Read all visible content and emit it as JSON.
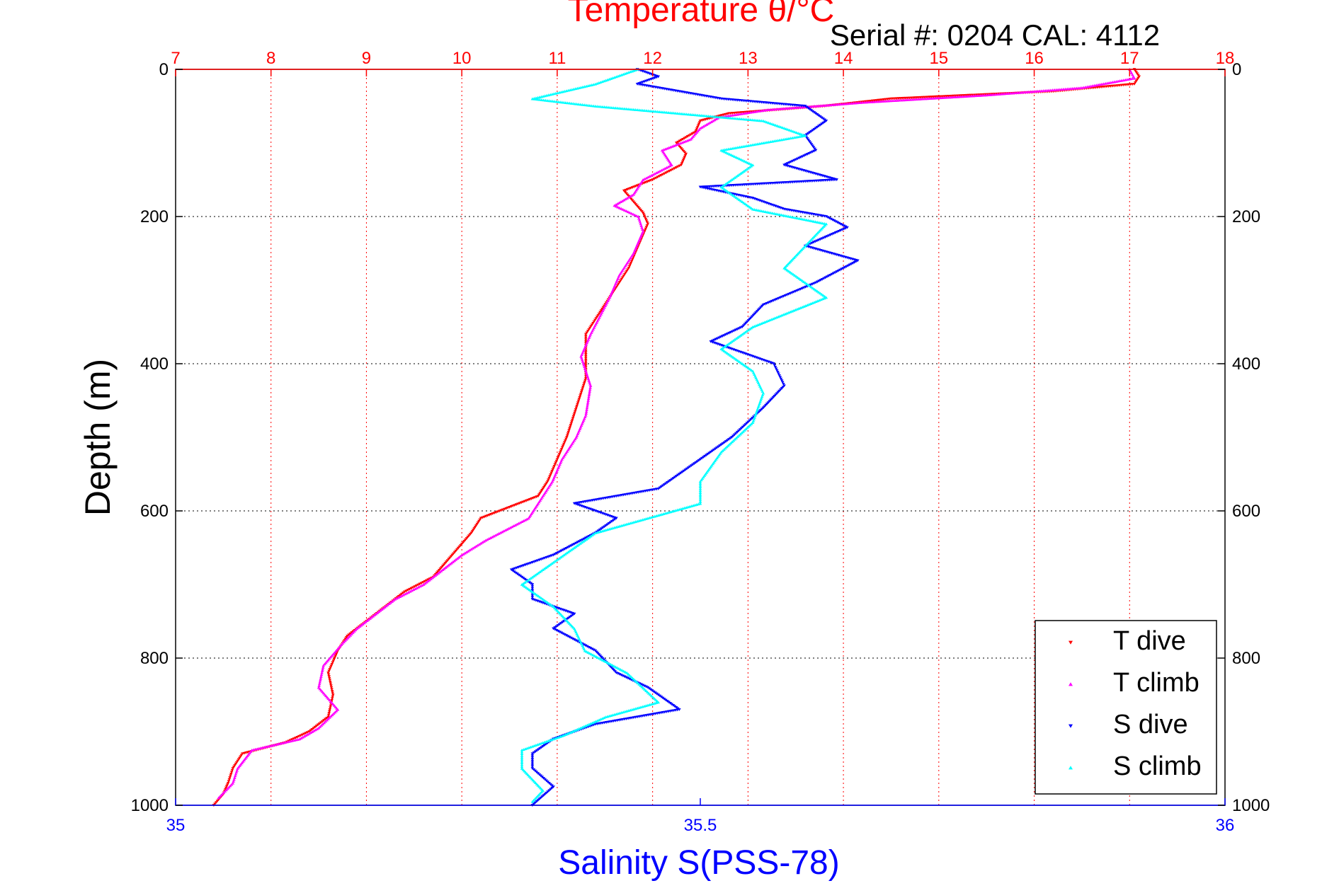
{
  "chart_data": {
    "type": "scatter",
    "title": "Temperature θ/°C",
    "subtitle": "Serial #: 0204  CAL: 4112",
    "ylabel": "Depth (m)",
    "xlabel_bottom": "Salinity S(PSS-78)",
    "y_axis": {
      "label": "Depth (m)",
      "range": [
        0,
        1000
      ],
      "reversed": true,
      "ticks": [
        0,
        200,
        400,
        600,
        800,
        1000
      ]
    },
    "x_axis_top": {
      "label": "Temperature θ/°C",
      "range": [
        7,
        18
      ],
      "ticks": [
        7,
        8,
        9,
        10,
        11,
        12,
        13,
        14,
        15,
        16,
        17,
        18
      ],
      "color": "#ff0000"
    },
    "x_axis_bottom": {
      "label": "Salinity S(PSS-78)",
      "range": [
        35,
        36
      ],
      "ticks": [
        35,
        35.5,
        36
      ],
      "tick_labels": [
        "35",
        "35.5",
        "36"
      ],
      "color": "#0000ff"
    },
    "grid": true,
    "legend": {
      "position": "bottom-right"
    },
    "series": [
      {
        "name": "T dive",
        "axis": "top",
        "color": "#ff0000",
        "marker": "triangle-down",
        "points": [
          [
            17.05,
            0
          ],
          [
            17.1,
            10
          ],
          [
            17.05,
            20
          ],
          [
            16.2,
            30
          ],
          [
            14.5,
            40
          ],
          [
            13.8,
            50
          ],
          [
            12.8,
            60
          ],
          [
            12.5,
            70
          ],
          [
            12.45,
            85
          ],
          [
            12.25,
            100
          ],
          [
            12.35,
            115
          ],
          [
            12.3,
            130
          ],
          [
            12.0,
            150
          ],
          [
            11.7,
            165
          ],
          [
            11.8,
            180
          ],
          [
            11.9,
            195
          ],
          [
            11.95,
            210
          ],
          [
            11.85,
            240
          ],
          [
            11.75,
            270
          ],
          [
            11.6,
            300
          ],
          [
            11.45,
            330
          ],
          [
            11.3,
            360
          ],
          [
            11.3,
            390
          ],
          [
            11.3,
            420
          ],
          [
            11.2,
            460
          ],
          [
            11.1,
            500
          ],
          [
            11.0,
            530
          ],
          [
            10.9,
            560
          ],
          [
            10.8,
            580
          ],
          [
            10.5,
            595
          ],
          [
            10.2,
            610
          ],
          [
            10.1,
            630
          ],
          [
            9.9,
            660
          ],
          [
            9.7,
            690
          ],
          [
            9.4,
            710
          ],
          [
            9.2,
            730
          ],
          [
            9.0,
            750
          ],
          [
            8.8,
            770
          ],
          [
            8.7,
            790
          ],
          [
            8.6,
            820
          ],
          [
            8.65,
            850
          ],
          [
            8.6,
            880
          ],
          [
            8.4,
            900
          ],
          [
            8.15,
            915
          ],
          [
            7.7,
            930
          ],
          [
            7.6,
            950
          ],
          [
            7.55,
            970
          ],
          [
            7.5,
            985
          ],
          [
            7.4,
            1000
          ]
        ]
      },
      {
        "name": "T climb",
        "axis": "top",
        "color": "#ff00ff",
        "marker": "triangle-up",
        "points": [
          [
            17.0,
            0
          ],
          [
            17.05,
            12
          ],
          [
            16.5,
            25
          ],
          [
            15.5,
            35
          ],
          [
            14.2,
            45
          ],
          [
            13.2,
            55
          ],
          [
            12.7,
            65
          ],
          [
            12.5,
            80
          ],
          [
            12.4,
            95
          ],
          [
            12.1,
            110
          ],
          [
            12.2,
            130
          ],
          [
            11.9,
            150
          ],
          [
            11.8,
            170
          ],
          [
            11.6,
            185
          ],
          [
            11.85,
            200
          ],
          [
            11.9,
            220
          ],
          [
            11.8,
            250
          ],
          [
            11.65,
            280
          ],
          [
            11.55,
            310
          ],
          [
            11.45,
            335
          ],
          [
            11.35,
            360
          ],
          [
            11.25,
            390
          ],
          [
            11.35,
            430
          ],
          [
            11.3,
            470
          ],
          [
            11.2,
            500
          ],
          [
            11.05,
            530
          ],
          [
            10.95,
            560
          ],
          [
            10.8,
            590
          ],
          [
            10.7,
            610
          ],
          [
            10.25,
            640
          ],
          [
            10.0,
            660
          ],
          [
            9.8,
            680
          ],
          [
            9.6,
            700
          ],
          [
            9.3,
            720
          ],
          [
            9.1,
            740
          ],
          [
            8.9,
            760
          ],
          [
            8.75,
            780
          ],
          [
            8.55,
            810
          ],
          [
            8.5,
            840
          ],
          [
            8.7,
            870
          ],
          [
            8.5,
            895
          ],
          [
            8.3,
            910
          ],
          [
            7.8,
            925
          ],
          [
            7.65,
            950
          ],
          [
            7.6,
            970
          ],
          [
            7.45,
            990
          ]
        ]
      },
      {
        "name": "S dive",
        "axis": "bottom",
        "color": "#0000ff",
        "marker": "triangle-down",
        "points": [
          [
            35.44,
            0
          ],
          [
            35.46,
            10
          ],
          [
            35.44,
            20
          ],
          [
            35.52,
            40
          ],
          [
            35.6,
            50
          ],
          [
            35.62,
            70
          ],
          [
            35.6,
            90
          ],
          [
            35.61,
            110
          ],
          [
            35.58,
            130
          ],
          [
            35.63,
            150
          ],
          [
            35.5,
            160
          ],
          [
            35.55,
            175
          ],
          [
            35.58,
            190
          ],
          [
            35.62,
            200
          ],
          [
            35.64,
            215
          ],
          [
            35.6,
            240
          ],
          [
            35.65,
            260
          ],
          [
            35.61,
            290
          ],
          [
            35.56,
            320
          ],
          [
            35.54,
            350
          ],
          [
            35.51,
            370
          ],
          [
            35.57,
            400
          ],
          [
            35.58,
            430
          ],
          [
            35.56,
            460
          ],
          [
            35.53,
            500
          ],
          [
            35.49,
            540
          ],
          [
            35.46,
            570
          ],
          [
            35.38,
            590
          ],
          [
            35.42,
            610
          ],
          [
            35.4,
            630
          ],
          [
            35.36,
            660
          ],
          [
            35.32,
            680
          ],
          [
            35.34,
            700
          ],
          [
            35.34,
            720
          ],
          [
            35.38,
            740
          ],
          [
            35.36,
            760
          ],
          [
            35.4,
            790
          ],
          [
            35.42,
            820
          ],
          [
            35.45,
            840
          ],
          [
            35.48,
            870
          ],
          [
            35.4,
            890
          ],
          [
            35.36,
            910
          ],
          [
            35.34,
            930
          ],
          [
            35.34,
            950
          ],
          [
            35.36,
            975
          ],
          [
            35.34,
            1000
          ]
        ]
      },
      {
        "name": "S climb",
        "axis": "bottom",
        "color": "#00ffff",
        "marker": "triangle-up",
        "points": [
          [
            35.44,
            0
          ],
          [
            35.4,
            20
          ],
          [
            35.34,
            40
          ],
          [
            35.4,
            50
          ],
          [
            35.56,
            70
          ],
          [
            35.6,
            90
          ],
          [
            35.52,
            110
          ],
          [
            35.55,
            130
          ],
          [
            35.52,
            160
          ],
          [
            35.55,
            190
          ],
          [
            35.62,
            210
          ],
          [
            35.6,
            240
          ],
          [
            35.58,
            270
          ],
          [
            35.62,
            310
          ],
          [
            35.55,
            350
          ],
          [
            35.52,
            380
          ],
          [
            35.55,
            410
          ],
          [
            35.56,
            440
          ],
          [
            35.55,
            480
          ],
          [
            35.52,
            520
          ],
          [
            35.5,
            560
          ],
          [
            35.5,
            590
          ],
          [
            35.45,
            610
          ],
          [
            35.4,
            630
          ],
          [
            35.38,
            650
          ],
          [
            35.36,
            670
          ],
          [
            35.33,
            700
          ],
          [
            35.36,
            730
          ],
          [
            35.38,
            760
          ],
          [
            35.39,
            790
          ],
          [
            35.43,
            820
          ],
          [
            35.46,
            860
          ],
          [
            35.41,
            880
          ],
          [
            35.37,
            905
          ],
          [
            35.33,
            925
          ],
          [
            35.33,
            950
          ],
          [
            35.35,
            980
          ],
          [
            35.34,
            995
          ]
        ]
      }
    ]
  }
}
